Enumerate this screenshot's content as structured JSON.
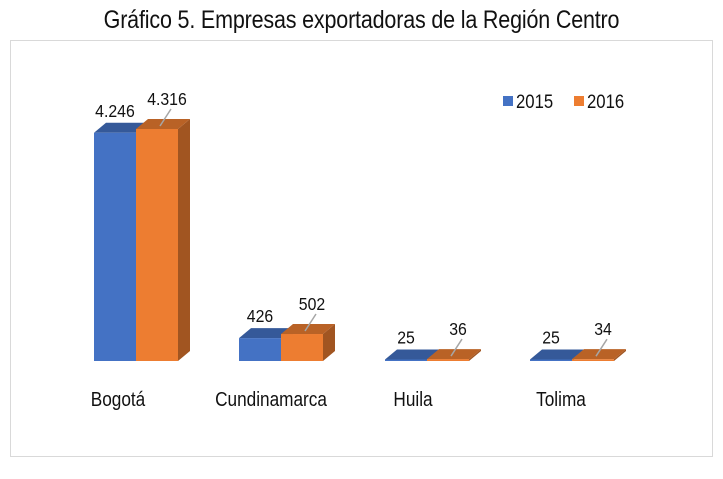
{
  "chart_data": {
    "type": "bar",
    "style": "3d-clustered-column",
    "title": "Gráfico 5. Empresas exportadoras de la Región Centro",
    "categories": [
      "Bogotá",
      "Cundinamarca",
      "Huila",
      "Tolima"
    ],
    "series": [
      {
        "name": "2015",
        "color": "#4472C4",
        "values": [
          4246,
          426,
          25,
          25
        ],
        "labels": [
          "4.246",
          "426",
          "25",
          "25"
        ]
      },
      {
        "name": "2016",
        "color": "#ED7D31",
        "values": [
          4316,
          502,
          36,
          34
        ],
        "labels": [
          "4.316",
          "502",
          "36",
          "34"
        ]
      }
    ],
    "xlabel": "",
    "ylabel": "",
    "ylim": [
      0,
      4316
    ],
    "grid": false,
    "axis_visible": false,
    "legend": {
      "position": "top-right",
      "entries": [
        "2015",
        "2016"
      ]
    }
  }
}
